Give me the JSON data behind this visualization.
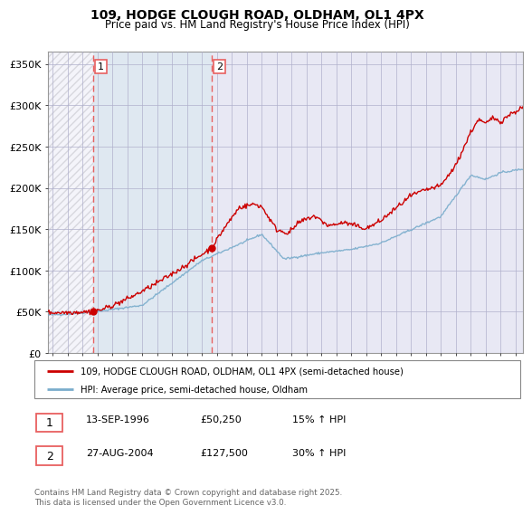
{
  "title": "109, HODGE CLOUGH ROAD, OLDHAM, OL1 4PX",
  "subtitle": "Price paid vs. HM Land Registry's House Price Index (HPI)",
  "ylabel_ticks": [
    "£0",
    "£50K",
    "£100K",
    "£150K",
    "£200K",
    "£250K",
    "£300K",
    "£350K"
  ],
  "ylabel_values": [
    0,
    50000,
    100000,
    150000,
    200000,
    250000,
    300000,
    350000
  ],
  "ylim": [
    0,
    365000
  ],
  "xlim_start": 1993.7,
  "xlim_end": 2025.5,
  "vline1_x": 1996.71,
  "vline2_x": 2004.65,
  "sale1_price_val": 50250,
  "sale2_price_val": 127500,
  "sale1_label": "1",
  "sale2_label": "2",
  "sale1_date": "13-SEP-1996",
  "sale1_price": "£50,250",
  "sale1_hpi": "15% ↑ HPI",
  "sale2_date": "27-AUG-2004",
  "sale2_price": "£127,500",
  "sale2_hpi": "30% ↑ HPI",
  "legend_line1": "109, HODGE CLOUGH ROAD, OLDHAM, OL1 4PX (semi-detached house)",
  "legend_line2": "HPI: Average price, semi-detached house, Oldham",
  "footer": "Contains HM Land Registry data © Crown copyright and database right 2025.\nThis data is licensed under the Open Government Licence v3.0.",
  "line_color_red": "#cc0000",
  "line_color_blue": "#7aadcc",
  "vline_color": "#e86060",
  "grid_color": "#b0b0cc",
  "plot_bg": "#e8e8f4",
  "hatch_color": "#c0c0c8"
}
